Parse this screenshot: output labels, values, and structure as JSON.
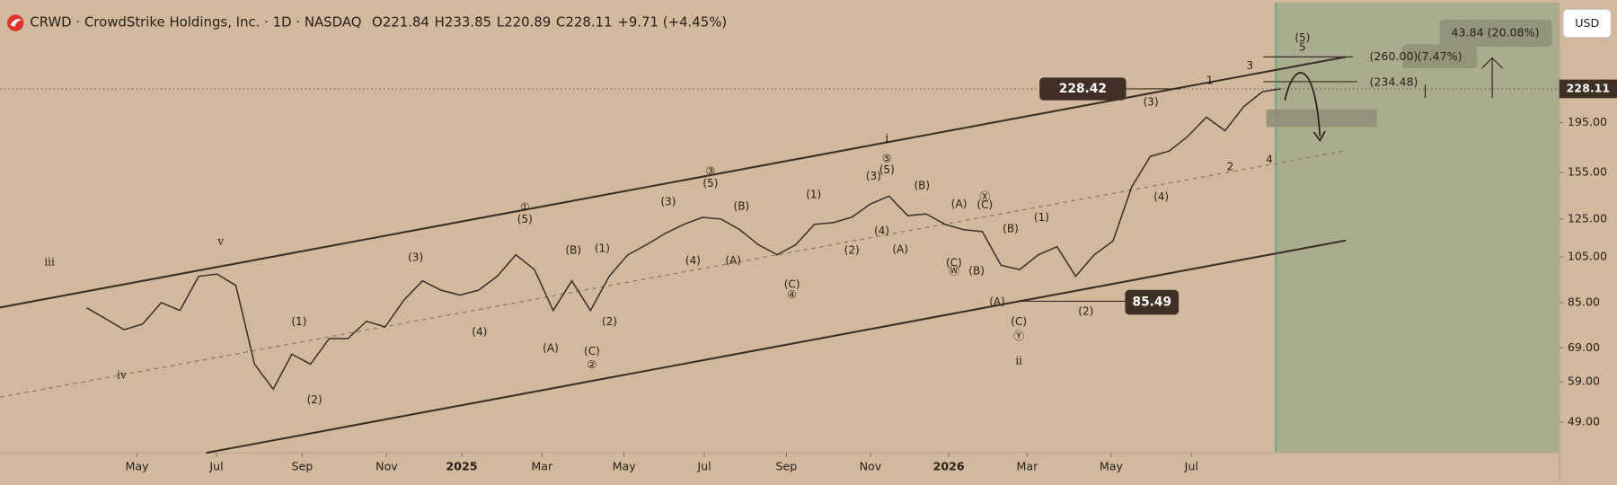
{
  "header": {
    "title": "CRWD · CrowdStrike Holdings, Inc. · 1D · NASDAQ",
    "ohlc": [
      {
        "label": "O",
        "value": 221.84
      },
      {
        "label": "H",
        "value": 233.85
      },
      {
        "label": "L",
        "value": 220.89
      },
      {
        "label": "C",
        "value": 228.11
      }
    ],
    "change": "+9.71 (+4.45%)",
    "currency": "USD"
  },
  "chart_data": {
    "type": "line",
    "log_scale": true,
    "color": "#3a2e25",
    "values": [
      83,
      79,
      75,
      77,
      85,
      82,
      96,
      97,
      92,
      64,
      57,
      67,
      64,
      72,
      72,
      78,
      76,
      86,
      94,
      90,
      88,
      90,
      96,
      106,
      99,
      82,
      94,
      82,
      96,
      106,
      111,
      117,
      122,
      126,
      125,
      119,
      111,
      106,
      111,
      122,
      123,
      126,
      134,
      139,
      127,
      128,
      122,
      119,
      118,
      101,
      99,
      106,
      110,
      96,
      106,
      113,
      145,
      167,
      171,
      183,
      200,
      188,
      210,
      225,
      228.11
    ],
    "ylim": [
      42.5,
      340
    ],
    "yticks": [
      {
        "value": 49,
        "label": "49.00"
      },
      {
        "value": 59,
        "label": "59.00"
      },
      {
        "value": 69,
        "label": "69.00"
      },
      {
        "value": 85,
        "label": "85.00"
      },
      {
        "value": 105,
        "label": "105.00"
      },
      {
        "value": 125,
        "label": "125.00"
      },
      {
        "value": 155,
        "label": "155.00"
      },
      {
        "value": 195,
        "label": "195.00"
      }
    ],
    "xlim": [
      -4.64,
      78.8
    ],
    "xticks": [
      {
        "value": 2.7,
        "label": "May"
      },
      {
        "value": 6.96,
        "label": "Jul"
      },
      {
        "value": 11.55,
        "label": "Sep"
      },
      {
        "value": 16.08,
        "label": "Nov"
      },
      {
        "value": 20.1,
        "label": "2025"
      },
      {
        "value": 24.4,
        "label": "Mar"
      },
      {
        "value": 28.8,
        "label": "May"
      },
      {
        "value": 33.1,
        "label": "Jul"
      },
      {
        "value": 37.5,
        "label": "Sep"
      },
      {
        "value": 42.0,
        "label": "Nov"
      },
      {
        "value": 46.2,
        "label": "2026"
      },
      {
        "value": 50.4,
        "label": "Mar"
      },
      {
        "value": 54.9,
        "label": "May"
      },
      {
        "value": 59.2,
        "label": "Jul"
      }
    ],
    "price_marks": [
      228.42,
      85.49
    ],
    "targets": [
      "43.84 (20.08%)",
      "(260.00)",
      "(7.47%)",
      "(234.48)"
    ],
    "annotations": [
      "v",
      "iii",
      "iv",
      "ii",
      "i",
      "(1)",
      "(2)",
      "(3)",
      "(4)",
      "①",
      "(5)",
      "(B)",
      "(1)",
      "(A)",
      "(C)",
      "②",
      "(2)",
      "(3)",
      "③",
      "(5)",
      "(B)",
      "(4)",
      "(A)",
      "(1)",
      "(2)",
      "(C)",
      "④",
      "(3)",
      "⑤",
      "(5)",
      "(B)",
      "(4)",
      "(A)",
      "(A)",
      "Ⓧ",
      "(C)",
      "(C)",
      "Ⓦ",
      "(B)",
      "(B)",
      "(1)",
      "(A)",
      "(C)",
      "Ⓨ",
      "(2)",
      "(3)",
      "(4)",
      "1",
      "2",
      "3",
      "4",
      "(5)",
      "5"
    ]
  }
}
